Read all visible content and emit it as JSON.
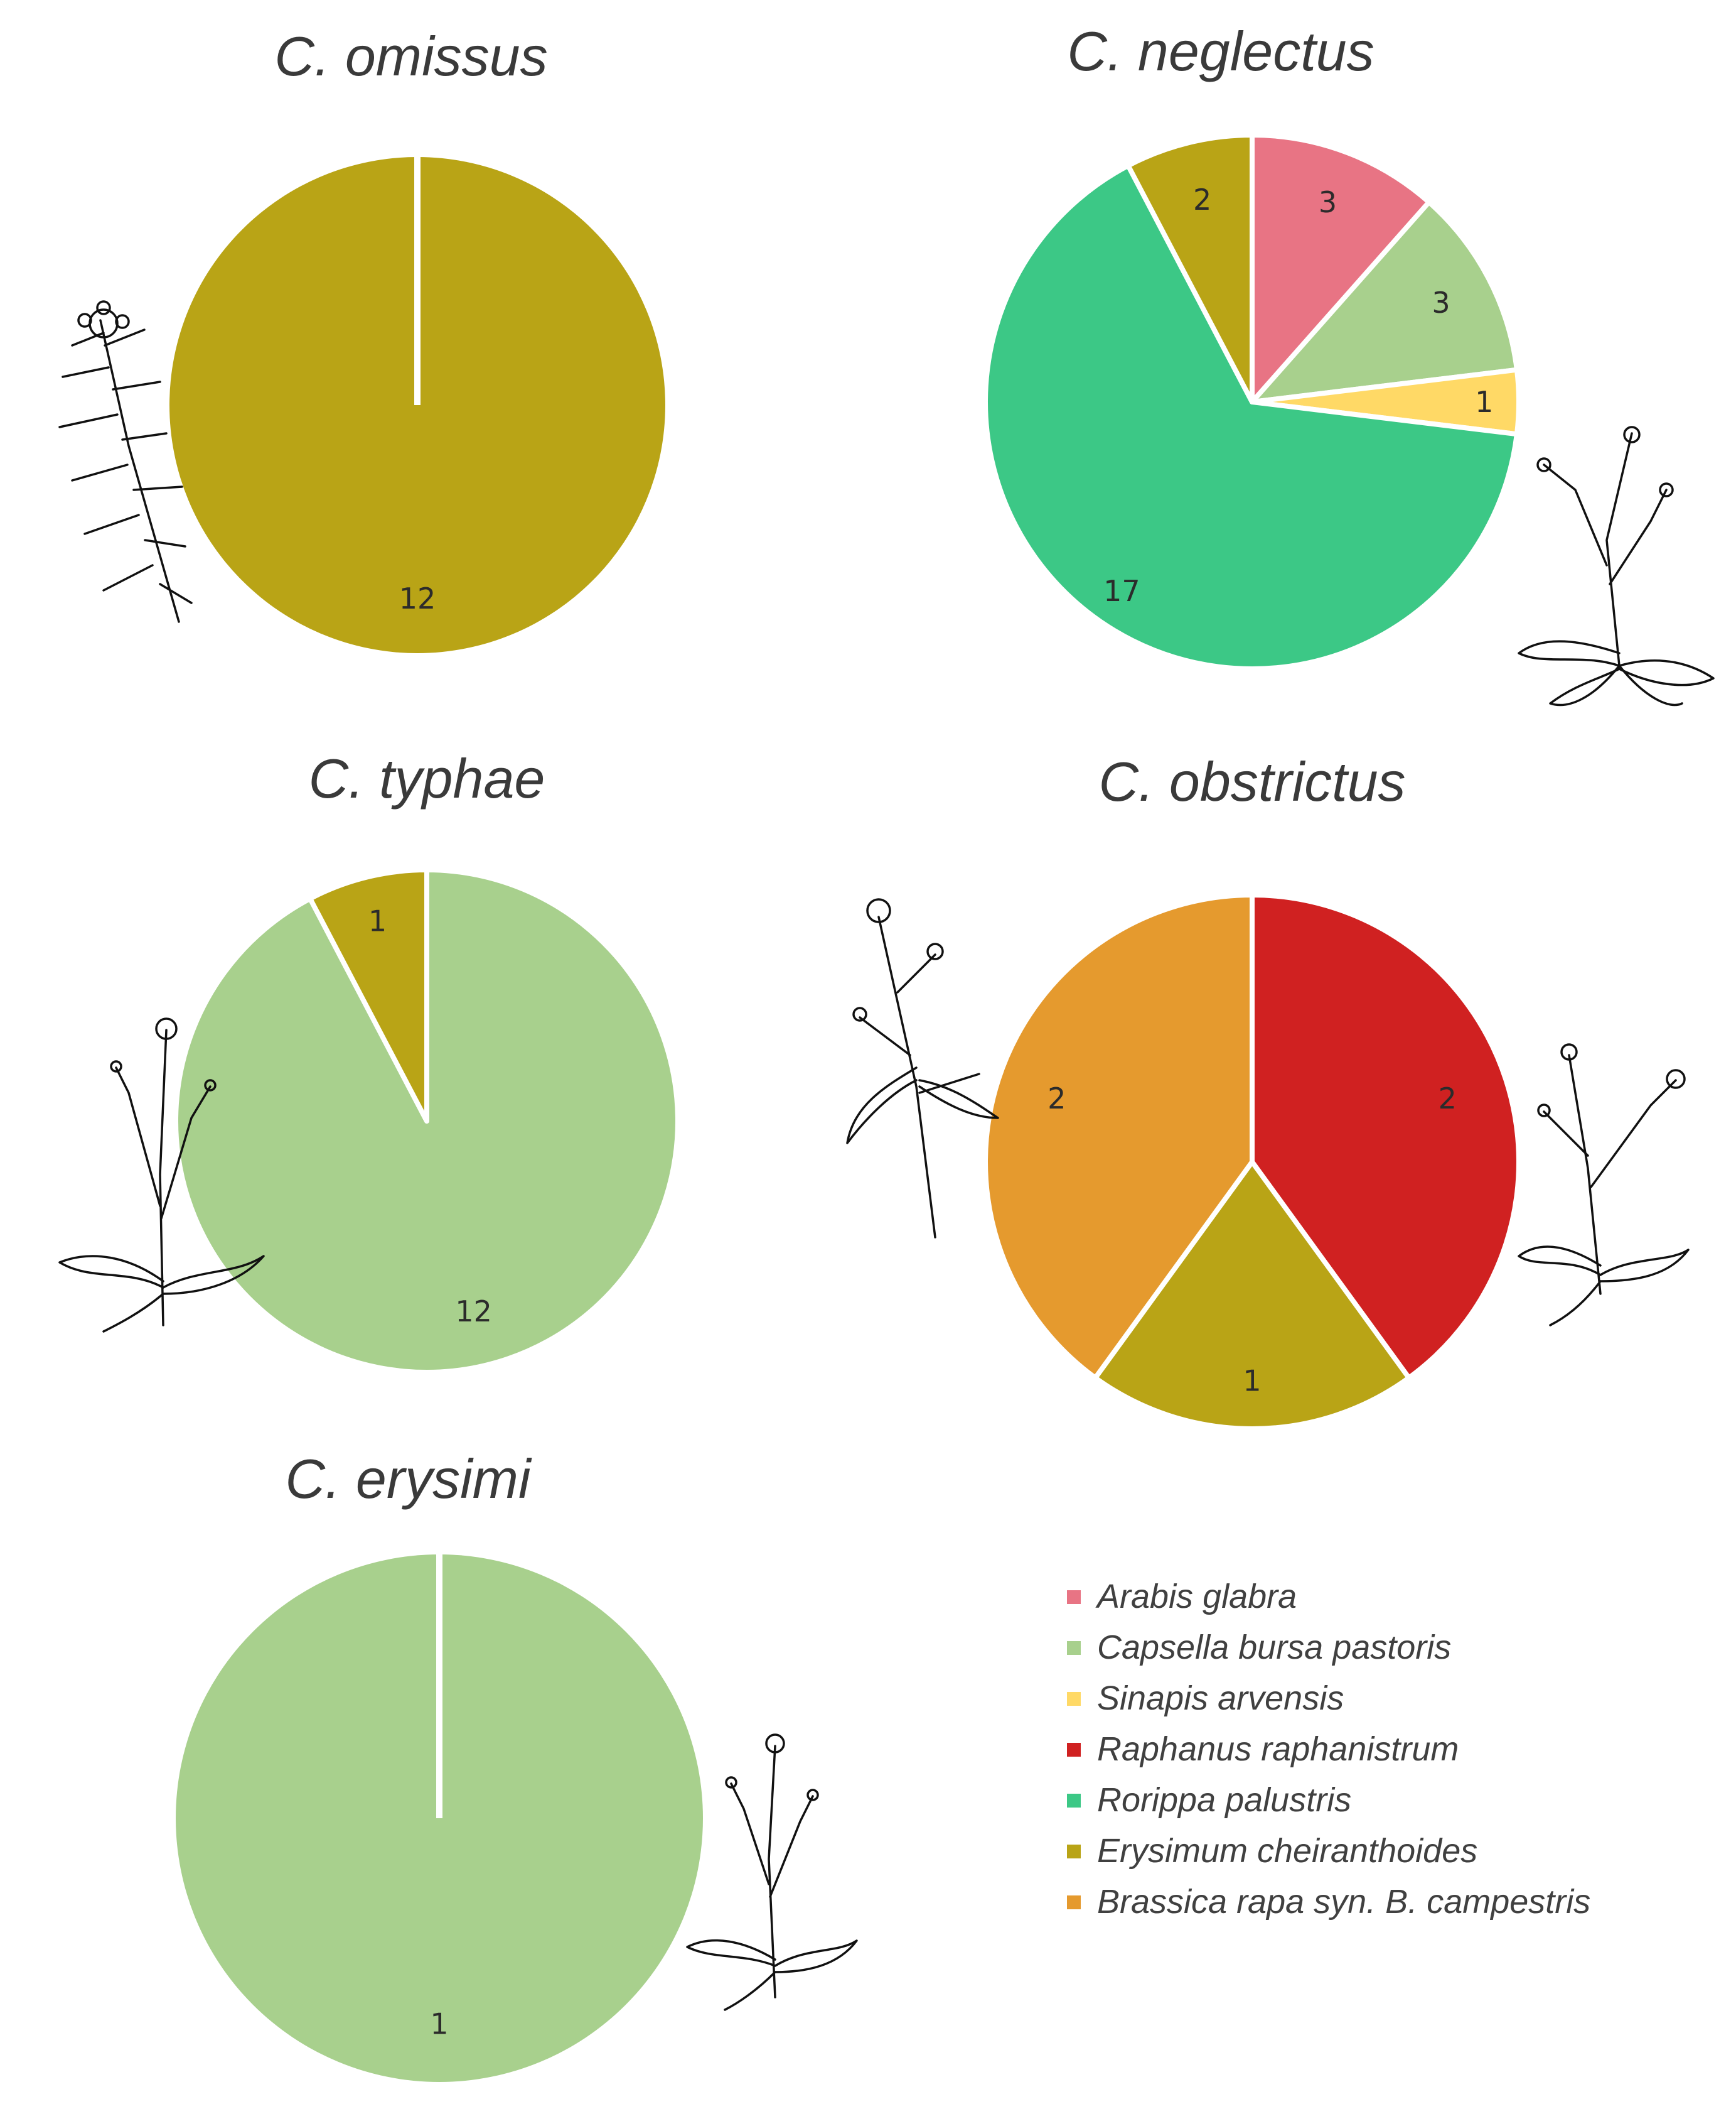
{
  "chart_data": [
    {
      "type": "pie",
      "title": "C. omissus",
      "slices": [
        {
          "host": "Erysimum cheiranthoides",
          "value": 12,
          "label": "12"
        }
      ]
    },
    {
      "type": "pie",
      "title": "C. neglectus",
      "slices": [
        {
          "host": "Arabis glabra",
          "value": 3,
          "label": "3"
        },
        {
          "host": "Capsella bursa pastoris",
          "value": 3,
          "label": "3"
        },
        {
          "host": "Sinapis arvensis",
          "value": 1,
          "label": "1"
        },
        {
          "host": "Rorippa palustris",
          "value": 17,
          "label": "17"
        },
        {
          "host": "Erysimum cheiranthoides",
          "value": 2,
          "label": "2"
        }
      ]
    },
    {
      "type": "pie",
      "title": "C. typhae",
      "slices": [
        {
          "host": "Capsella bursa pastoris",
          "value": 12,
          "label": "12"
        },
        {
          "host": "Erysimum cheiranthoides",
          "value": 1,
          "label": "1"
        }
      ]
    },
    {
      "type": "pie",
      "title": "C. obstrictus",
      "slices": [
        {
          "host": "Raphanus raphanistrum",
          "value": 2,
          "label": "2"
        },
        {
          "host": "Erysimum cheiranthoides",
          "value": 1,
          "label": "1"
        },
        {
          "host": "Brassica rapa syn. B. campestris",
          "value": 2,
          "label": "2"
        }
      ]
    },
    {
      "type": "pie",
      "title": "C. erysimi",
      "slices": [
        {
          "host": "Capsella bursa pastoris",
          "value": 1,
          "label": "1"
        }
      ]
    }
  ],
  "legend": {
    "placement": "bottom-right",
    "items": [
      {
        "label": "Arabis glabra",
        "color": "#e87484"
      },
      {
        "label": "Capsella bursa pastoris",
        "color": "#a8d08d"
      },
      {
        "label": "Sinapis arvensis",
        "color": "#ffd966"
      },
      {
        "label": "Raphanus raphanistrum",
        "color": "#d02121"
      },
      {
        "label": "Rorippa palustris",
        "color": "#3cc886"
      },
      {
        "label": "Erysimum cheiranthoides",
        "color": "#b9a416"
      },
      {
        "label": "Brassica rapa syn. B. campestris",
        "color": "#e59a2e"
      }
    ]
  },
  "icons": [
    "plant-drawing-icon"
  ]
}
